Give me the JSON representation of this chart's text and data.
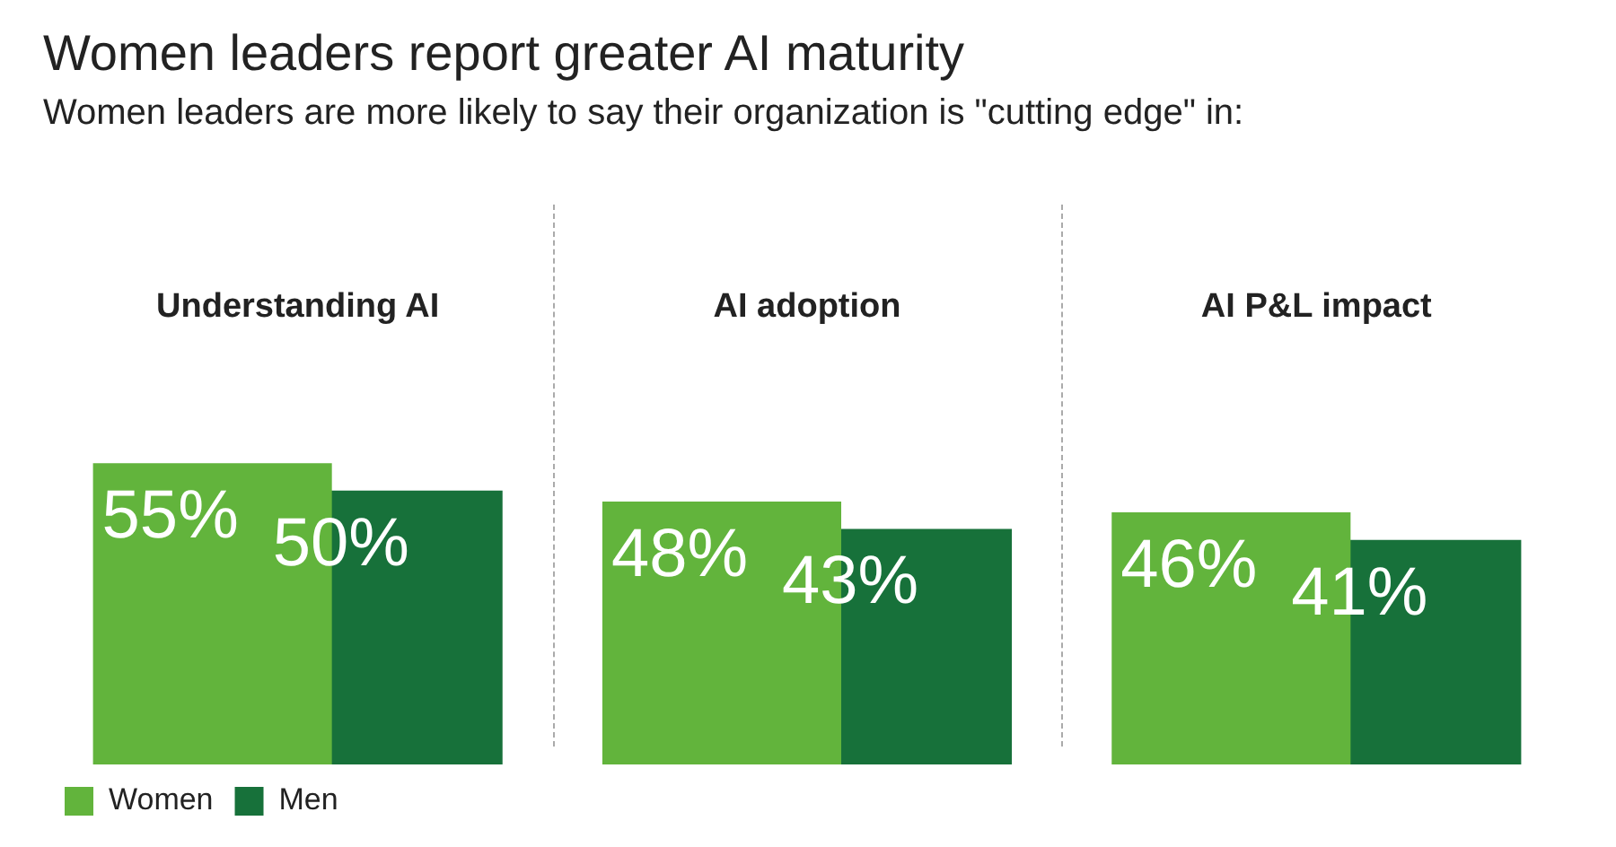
{
  "chart_data": {
    "type": "bar",
    "title": "Women leaders report greater AI maturity",
    "subtitle": "Women leaders are more likely to say their organization is \"cutting edge\" in:",
    "categories": [
      "Understanding AI",
      "AI adoption",
      "AI P&L impact"
    ],
    "series": [
      {
        "name": "Women",
        "color": "#62b43c",
        "values": [
          55,
          48,
          46
        ],
        "value_labels": [
          "55%",
          "48%",
          "46%"
        ]
      },
      {
        "name": "Men",
        "color": "#17713a",
        "values": [
          50,
          43,
          41
        ],
        "value_labels": [
          "50%",
          "43%",
          "41%"
        ]
      }
    ],
    "legend": "bottom left",
    "grid": false
  }
}
